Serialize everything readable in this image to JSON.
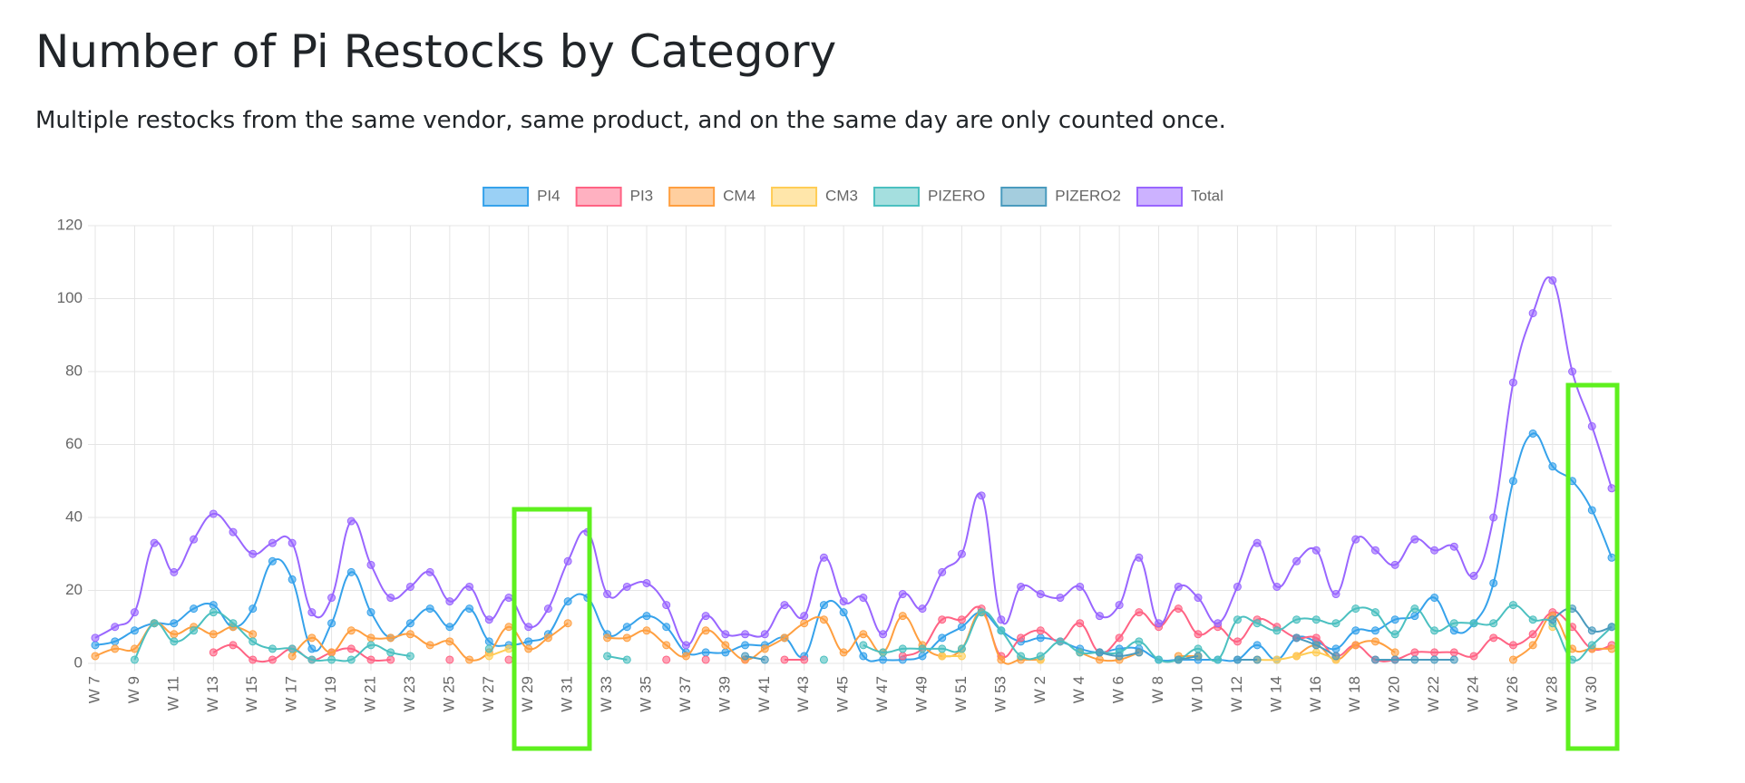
{
  "title": "Number of Pi Restocks by Category",
  "subtitle": "Multiple restocks from the same vendor, same product, and on the same day are only counted once.",
  "chart_data": {
    "type": "line",
    "categories": [
      "W 7",
      null,
      "W 9",
      null,
      "W 11",
      null,
      "W 13",
      null,
      "W 15",
      null,
      "W 17",
      null,
      "W 19",
      null,
      "W 21",
      null,
      "W 23",
      null,
      "W 25",
      null,
      "W 27",
      null,
      "W 29",
      null,
      "W 31",
      null,
      "W 33",
      null,
      "W 35",
      null,
      "W 37",
      null,
      "W 39",
      null,
      "W 41",
      null,
      "W 43",
      null,
      "W 45",
      null,
      "W 47",
      null,
      "W 49",
      null,
      "W 51",
      null,
      "W 53",
      null,
      "W 2",
      null,
      "W 4",
      null,
      "W 6",
      null,
      "W 8",
      null,
      "W 10",
      null,
      "W 12",
      null,
      "W 14",
      null,
      "W 16",
      null,
      "W 18",
      null,
      "W 20",
      null,
      "W 22",
      null,
      "W 24",
      null,
      "W 26",
      null,
      "W 28",
      null,
      "W 30",
      null
    ],
    "series": [
      {
        "name": "PI4",
        "color": "#36a2eb",
        "values": [
          5,
          6,
          9,
          11,
          11,
          15,
          16,
          10,
          15,
          28,
          23,
          4,
          11,
          25,
          14,
          7,
          11,
          15,
          10,
          15,
          6,
          5,
          6,
          8,
          17,
          18,
          8,
          10,
          13,
          10,
          3,
          3,
          3,
          5,
          5,
          7,
          2,
          16,
          14,
          2,
          1,
          1,
          2,
          7,
          10,
          14,
          9,
          6,
          7,
          6,
          4,
          3,
          4,
          4,
          1,
          1,
          1,
          1,
          1,
          5,
          1,
          7,
          6,
          4,
          9,
          9,
          12,
          13,
          18,
          9,
          11,
          22,
          50,
          63,
          54,
          50,
          42,
          29
        ]
      },
      {
        "name": "PI3",
        "color": "#ff6384",
        "values": [
          null,
          null,
          null,
          null,
          null,
          null,
          3,
          5,
          1,
          1,
          4,
          1,
          3,
          4,
          1,
          1,
          null,
          null,
          1,
          null,
          null,
          1,
          null,
          null,
          null,
          null,
          null,
          null,
          null,
          1,
          null,
          1,
          null,
          1,
          null,
          1,
          1,
          null,
          null,
          null,
          null,
          2,
          4,
          12,
          12,
          15,
          2,
          7,
          9,
          6,
          11,
          3,
          7,
          14,
          10,
          15,
          8,
          10,
          6,
          12,
          10,
          7,
          7,
          2,
          5,
          1,
          1,
          3,
          3,
          3,
          2,
          7,
          5,
          8,
          14,
          10,
          4,
          5
        ]
      },
      {
        "name": "CM4",
        "color": "#ff9f40",
        "values": [
          2,
          4,
          4,
          11,
          8,
          10,
          8,
          10,
          8,
          null,
          2,
          7,
          3,
          9,
          7,
          7,
          8,
          5,
          6,
          1,
          3,
          10,
          4,
          7,
          11,
          null,
          7,
          7,
          9,
          5,
          2,
          9,
          5,
          1,
          4,
          7,
          11,
          12,
          3,
          8,
          3,
          13,
          5,
          2,
          4,
          14,
          1,
          1,
          1,
          null,
          3,
          1,
          1,
          3,
          null,
          2,
          2,
          null,
          null,
          null,
          null,
          2,
          5,
          1,
          5,
          6,
          3,
          null,
          null,
          null,
          null,
          null,
          1,
          5,
          13,
          4,
          4,
          4
        ]
      },
      {
        "name": "CM3",
        "color": "#ffcd56",
        "values": [
          null,
          null,
          null,
          null,
          null,
          null,
          null,
          null,
          null,
          null,
          null,
          null,
          null,
          null,
          null,
          null,
          null,
          null,
          null,
          null,
          2,
          4,
          null,
          null,
          null,
          null,
          null,
          null,
          null,
          null,
          null,
          null,
          null,
          null,
          null,
          null,
          null,
          null,
          null,
          null,
          null,
          null,
          null,
          2,
          2,
          null,
          null,
          null,
          1,
          null,
          null,
          null,
          null,
          null,
          null,
          1,
          2,
          null,
          null,
          1,
          1,
          2,
          3,
          1,
          null,
          null,
          null,
          null,
          null,
          null,
          null,
          null,
          null,
          null,
          10,
          null,
          null,
          null
        ]
      },
      {
        "name": "PIZERO",
        "color": "#4bc0c0",
        "values": [
          null,
          null,
          1,
          11,
          6,
          9,
          14,
          11,
          6,
          4,
          4,
          1,
          1,
          1,
          5,
          3,
          2,
          null,
          null,
          null,
          4,
          null,
          null,
          null,
          null,
          null,
          2,
          1,
          null,
          null,
          null,
          null,
          null,
          null,
          null,
          null,
          null,
          1,
          null,
          5,
          3,
          4,
          4,
          4,
          4,
          14,
          9,
          2,
          2,
          6,
          3,
          3,
          3,
          6,
          1,
          1,
          4,
          1,
          12,
          11,
          9,
          12,
          12,
          11,
          15,
          14,
          8,
          15,
          9,
          11,
          11,
          11,
          16,
          12,
          11,
          1,
          5,
          10
        ]
      },
      {
        "name": "PIZERO2",
        "color": "#4a9bbe",
        "values": [
          null,
          null,
          null,
          null,
          null,
          null,
          null,
          null,
          null,
          null,
          null,
          null,
          null,
          null,
          null,
          null,
          null,
          null,
          null,
          null,
          null,
          null,
          null,
          null,
          null,
          null,
          null,
          null,
          null,
          null,
          null,
          null,
          null,
          2,
          1,
          null,
          null,
          null,
          null,
          null,
          null,
          null,
          null,
          null,
          null,
          null,
          null,
          null,
          null,
          null,
          null,
          3,
          2,
          3,
          null,
          1,
          2,
          null,
          1,
          1,
          null,
          7,
          5,
          2,
          null,
          1,
          1,
          1,
          1,
          1,
          null,
          null,
          null,
          null,
          12,
          15,
          9,
          10
        ]
      },
      {
        "name": "Total",
        "color": "#9966ff",
        "values": [
          7,
          10,
          14,
          33,
          25,
          34,
          41,
          36,
          30,
          33,
          33,
          14,
          18,
          39,
          27,
          18,
          21,
          25,
          17,
          21,
          12,
          18,
          10,
          15,
          28,
          36,
          19,
          21,
          22,
          16,
          5,
          13,
          8,
          8,
          8,
          16,
          13,
          29,
          17,
          18,
          8,
          19,
          15,
          25,
          30,
          46,
          12,
          21,
          19,
          18,
          21,
          13,
          16,
          29,
          11,
          21,
          18,
          11,
          21,
          33,
          21,
          28,
          31,
          19,
          34,
          31,
          27,
          34,
          31,
          32,
          24,
          40,
          77,
          96,
          105,
          80,
          65,
          48
        ]
      }
    ],
    "ylim": [
      0,
      120
    ],
    "yticks": [
      0,
      20,
      40,
      60,
      80,
      100,
      120
    ],
    "grid": true,
    "legend": "top"
  }
}
